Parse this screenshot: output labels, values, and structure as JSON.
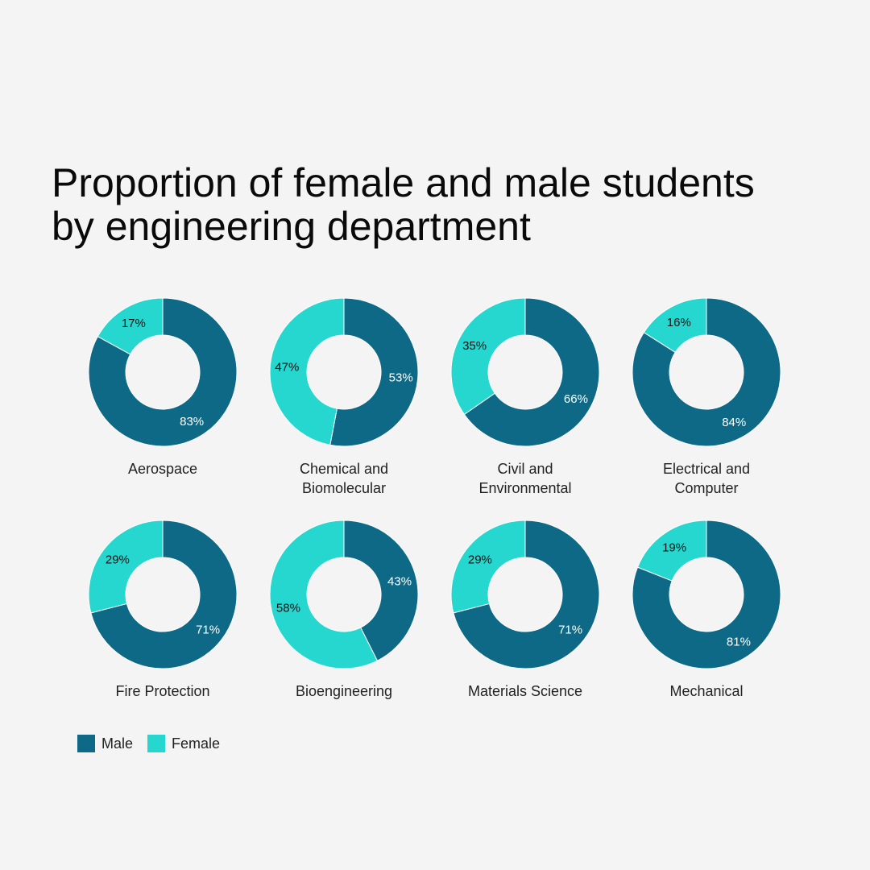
{
  "title_lines": [
    "Proportion of female and male students",
    "by engineering department"
  ],
  "colors": {
    "male": "#0e6987",
    "female": "#26d7cf",
    "background": "#f4f4f4"
  },
  "legend": [
    {
      "label": "Male",
      "color": "#0e6987"
    },
    {
      "label": "Female",
      "color": "#26d7cf"
    }
  ],
  "chart_data": {
    "type": "pie",
    "title": "Proportion of female and male students by engineering department",
    "series_order": [
      "Male",
      "Female"
    ],
    "departments": [
      {
        "name_lines": [
          "Aerospace"
        ],
        "male": 83,
        "female": 17
      },
      {
        "name_lines": [
          "Chemical and",
          "Biomolecular"
        ],
        "male": 53,
        "female": 47
      },
      {
        "name_lines": [
          "Civil and",
          "Environmental"
        ],
        "male": 66,
        "female": 35
      },
      {
        "name_lines": [
          "Electrical and",
          "Computer"
        ],
        "male": 84,
        "female": 16
      },
      {
        "name_lines": [
          "Fire Protection"
        ],
        "male": 71,
        "female": 29
      },
      {
        "name_lines": [
          "Bioengineering"
        ],
        "male": 43,
        "female": 58
      },
      {
        "name_lines": [
          "Materials Science"
        ],
        "male": 71,
        "female": 29
      },
      {
        "name_lines": [
          "Mechanical"
        ],
        "male": 81,
        "female": 19
      }
    ]
  }
}
